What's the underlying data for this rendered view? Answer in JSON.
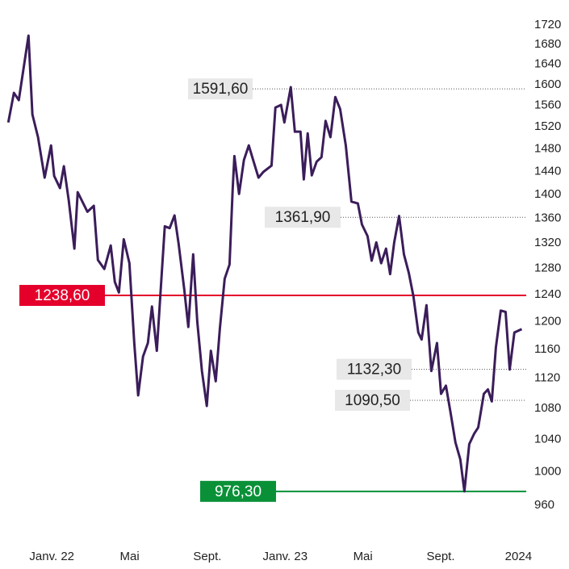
{
  "chart_data": {
    "type": "line",
    "log_y": true,
    "series": [
      {
        "color": "#3b1d5a",
        "x": [
          -2.24,
          -1.95,
          -1.7,
          -1.2,
          -1.0,
          -0.71,
          -0.37,
          -0.04,
          0.12,
          0.42,
          0.62,
          0.87,
          1.16,
          1.33,
          1.83,
          2.16,
          2.37,
          2.7,
          3.03,
          3.24,
          3.45,
          3.7,
          3.99,
          4.24,
          4.44,
          4.69,
          4.94,
          5.15,
          5.4,
          5.61,
          5.81,
          6.06,
          6.31,
          6.52,
          6.81,
          7.02,
          7.27,
          7.48,
          7.72,
          7.97,
          8.18,
          8.43,
          8.64,
          8.89,
          9.14,
          9.3,
          9.39,
          9.63,
          9.88,
          10.13,
          10.38,
          10.63,
          10.88,
          11.3,
          11.5,
          11.79,
          11.96,
          12.29,
          12.5,
          12.79,
          12.96,
          13.16,
          13.37,
          13.62,
          13.87,
          14.08,
          14.33,
          14.58,
          14.83,
          15.12,
          15.41,
          15.74,
          15.95,
          16.24,
          16.45,
          16.69,
          16.94,
          17.19,
          17.4,
          17.61,
          17.86,
          18.11,
          18.36,
          18.6,
          18.85,
          19.02,
          19.27,
          19.52,
          19.81,
          20.02,
          20.27,
          20.51,
          20.76,
          21.01,
          21.22,
          21.47,
          21.72,
          21.93,
          22.22,
          22.43,
          22.63,
          22.84,
          23.09,
          23.34,
          23.55,
          23.79,
          24.17
        ],
        "values": [
          1528,
          1584,
          1570,
          1698,
          1543,
          1501,
          1429,
          1486,
          1432,
          1411,
          1449,
          1390,
          1311,
          1404,
          1371,
          1381,
          1293,
          1279,
          1316,
          1259,
          1243,
          1326,
          1288,
          1169,
          1097,
          1150,
          1169,
          1222,
          1158,
          1252,
          1347,
          1344,
          1365,
          1319,
          1248,
          1192,
          1302,
          1200,
          1130,
          1083,
          1158,
          1116,
          1189,
          1264,
          1286,
          1408,
          1467,
          1401,
          1460,
          1486,
          1457,
          1429,
          1439,
          1450,
          1556,
          1561,
          1528,
          1595,
          1511,
          1511,
          1426,
          1508,
          1433,
          1457,
          1465,
          1531,
          1501,
          1576,
          1553,
          1486,
          1388,
          1385,
          1350,
          1331,
          1292,
          1321,
          1288,
          1311,
          1271,
          1321,
          1364,
          1302,
          1273,
          1237,
          1184,
          1174,
          1224,
          1130,
          1169,
          1099,
          1110,
          1074,
          1036,
          1015,
          976.3,
          1034,
          1047,
          1055,
          1099,
          1105,
          1089,
          1163,
          1216,
          1214,
          1132,
          1184,
          1189
        ]
      }
    ],
    "xlim": [
      -2.5,
      24.4
    ],
    "xticks": [
      {
        "value": 0,
        "label": "Janv. 22"
      },
      {
        "value": 4,
        "label": "Mai"
      },
      {
        "value": 8,
        "label": "Sept."
      },
      {
        "value": 12,
        "label": "Janv. 23"
      },
      {
        "value": 16,
        "label": "Mai"
      },
      {
        "value": 20,
        "label": "Sept."
      },
      {
        "value": 24,
        "label": "2024"
      }
    ],
    "ylim": [
      960,
      1720
    ],
    "yticks": [
      960,
      1000,
      1040,
      1080,
      1120,
      1160,
      1200,
      1240,
      1280,
      1320,
      1360,
      1400,
      1440,
      1480,
      1520,
      1560,
      1600,
      1640,
      1680,
      1720
    ],
    "annotations": [
      {
        "value": 1591.6,
        "label": "1591,60",
        "style": "dotted",
        "color": "#e8e8e8"
      },
      {
        "value": 1361.9,
        "label": "1361,90",
        "style": "dotted",
        "color": "#e8e8e8"
      },
      {
        "value": 1238.6,
        "label": "1238,60",
        "style": "solid",
        "color": "#e4002b"
      },
      {
        "value": 1132.3,
        "label": "1132,30",
        "style": "dotted",
        "color": "#e8e8e8"
      },
      {
        "value": 1090.5,
        "label": "1090,50",
        "style": "dotted",
        "color": "#e8e8e8"
      },
      {
        "value": 976.3,
        "label": "976,30",
        "style": "solid",
        "color": "#0a9138"
      }
    ]
  }
}
